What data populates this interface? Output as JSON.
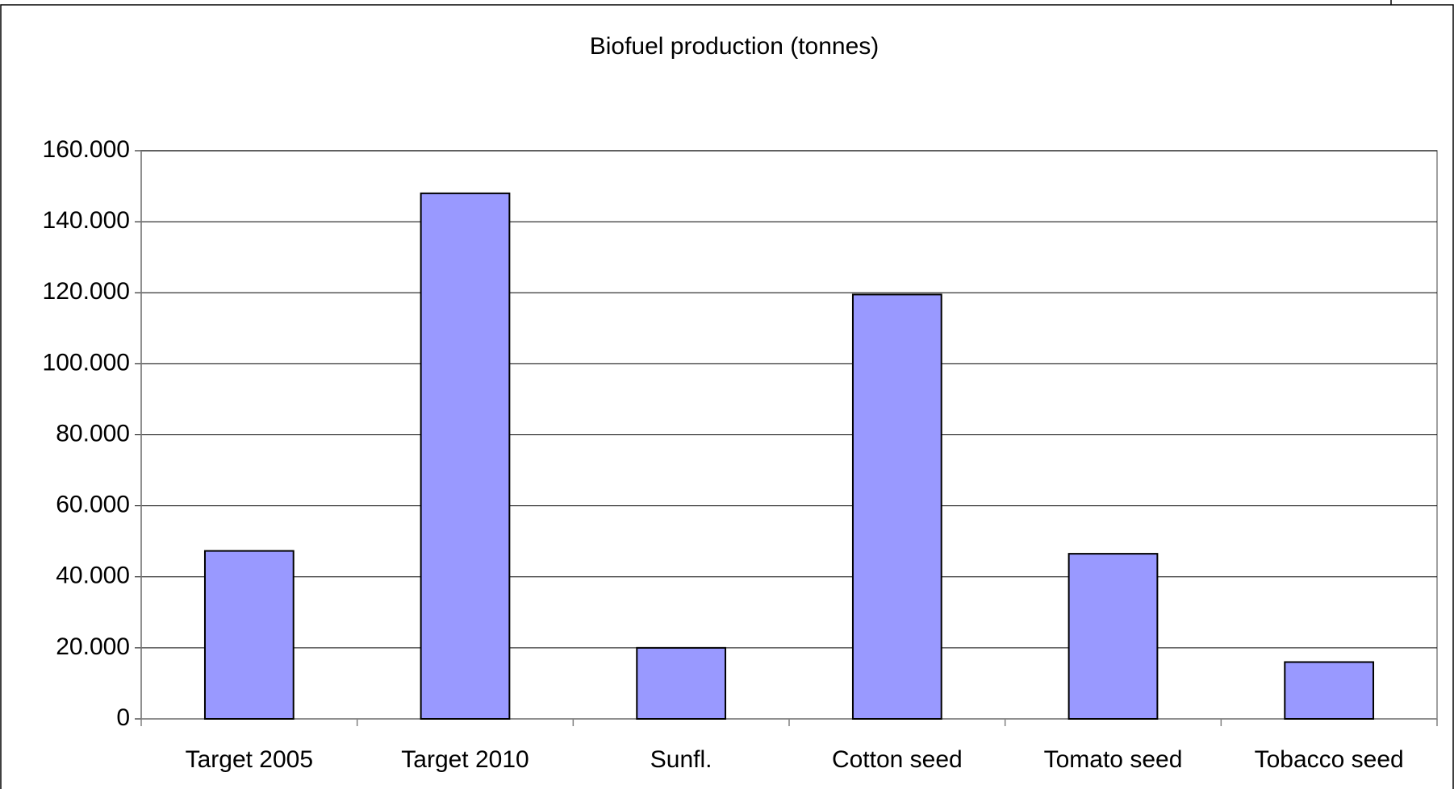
{
  "chart_data": {
    "type": "bar",
    "title": "Biofuel production (tonnes)",
    "categories": [
      "Target 2005",
      "Target 2010",
      "Sunfl.",
      "Cotton seed",
      "Tomato seed",
      "Tobacco seed"
    ],
    "values": [
      47300,
      148000,
      20000,
      119500,
      46500,
      16000
    ],
    "color": "#9999ff",
    "ylim": [
      0,
      160000
    ],
    "yticks": [
      0,
      {
        "value": 20000,
        "label": "20.000"
      },
      {
        "value": 40000,
        "label": "40.000"
      },
      {
        "value": 60000,
        "label": "60.000"
      },
      {
        "value": 80000,
        "label": "80.000"
      },
      {
        "value": 100000,
        "label": "100.000"
      },
      {
        "value": 120000,
        "label": "120.000"
      },
      {
        "value": 140000,
        "label": "140.000"
      },
      {
        "value": 160000,
        "label": "160.000"
      }
    ],
    "grid": true
  }
}
